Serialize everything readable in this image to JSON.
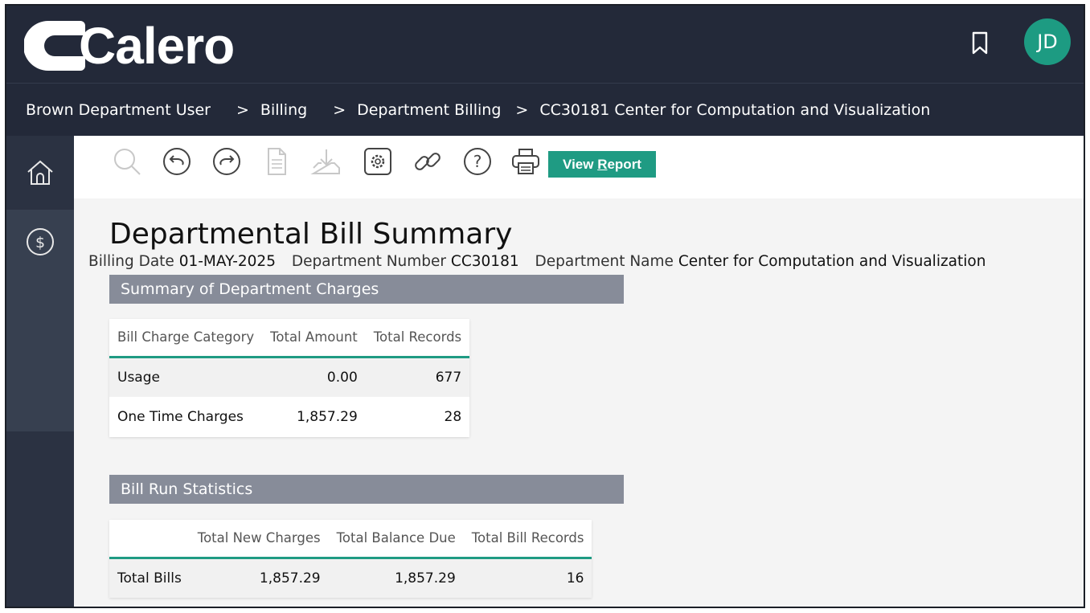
{
  "header": {
    "logo_text": "Calero",
    "avatar_initials": "JD",
    "colors": {
      "bar": "#232939",
      "accent": "#1d9b82"
    }
  },
  "breadcrumb": {
    "items": [
      "Brown Department User",
      "Billing",
      "Department Billing",
      "CC30181 Center for Computation and Visualization"
    ],
    "separator": ">"
  },
  "sidebar": {
    "items": [
      {
        "icon": "home-icon"
      },
      {
        "icon": "dollar-circle-icon"
      }
    ]
  },
  "toolbar": {
    "icons": [
      "search-icon",
      "undo-icon",
      "redo-icon",
      "document-icon",
      "download-icon",
      "settings-icon",
      "link-icon",
      "help-icon",
      "print-icon"
    ],
    "view_report": {
      "pre": "View ",
      "underlined": "R",
      "post": "eport"
    }
  },
  "page": {
    "title": "Departmental Bill Summary",
    "billing_date_label": "Billing Date",
    "billing_date": "01-MAY-2025",
    "dept_number_label": "Department Number",
    "dept_number": "CC30181",
    "dept_name_label": "Department Name",
    "dept_name": "Center for Computation and Visualization"
  },
  "summary": {
    "heading": "Summary of Department Charges",
    "columns": [
      "Bill Charge Category",
      "Total Amount",
      "Total Records"
    ],
    "rows": [
      [
        "Usage",
        "0.00",
        "677"
      ],
      [
        "One Time Charges",
        "1,857.29",
        "28"
      ]
    ]
  },
  "stats": {
    "heading": "Bill Run Statistics",
    "columns": [
      "",
      "Total New Charges",
      "Total Balance Due",
      "Total Bill Records"
    ],
    "rows": [
      [
        "Total Bills",
        "1,857.29",
        "1,857.29",
        "16"
      ]
    ]
  }
}
